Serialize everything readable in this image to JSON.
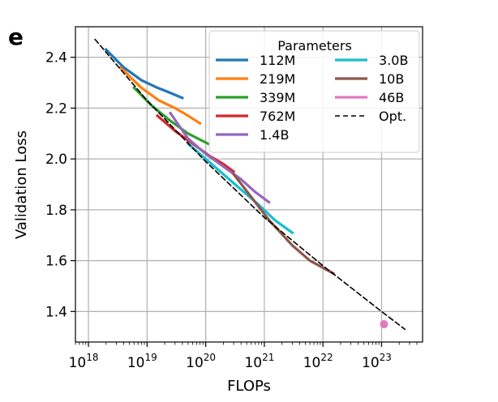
{
  "panel_label": "e",
  "chart_data": {
    "type": "line",
    "xlabel": "FLOPs",
    "ylabel": "Validation Loss",
    "xscale": "log",
    "xlim": [
      6e+17,
      5e+23
    ],
    "ylim": [
      1.28,
      2.52
    ],
    "grid": true,
    "x_ticks": [
      {
        "value": 1e+18,
        "base": "10",
        "exp": "18"
      },
      {
        "value": 1e+19,
        "base": "10",
        "exp": "19"
      },
      {
        "value": 1e+20,
        "base": "10",
        "exp": "20"
      },
      {
        "value": 1e+21,
        "base": "10",
        "exp": "21"
      },
      {
        "value": 1e+22,
        "base": "10",
        "exp": "22"
      },
      {
        "value": 1e+23,
        "base": "10",
        "exp": "23"
      }
    ],
    "y_ticks": [
      1.4,
      1.6,
      1.8,
      2.0,
      2.2,
      2.4
    ],
    "y_tick_labels": [
      "1.4",
      "1.6",
      "1.8",
      "2.0",
      "2.2",
      "2.4"
    ],
    "legend": {
      "title": "Parameters",
      "placement": "top-right",
      "columns": 2
    },
    "series": [
      {
        "name": "112M",
        "color": "#1f77b4",
        "x": [
          2e+18,
          4e+18,
          8e+18,
          1.5e+19,
          2.5e+19,
          4e+19
        ],
        "y": [
          2.43,
          2.36,
          2.31,
          2.28,
          2.26,
          2.24
        ]
      },
      {
        "name": "219M",
        "color": "#ff7f0e",
        "x": [
          3.5e+18,
          8e+18,
          1.6e+19,
          3e+19,
          5e+19,
          8e+19
        ],
        "y": [
          2.36,
          2.28,
          2.23,
          2.2,
          2.17,
          2.14
        ]
      },
      {
        "name": "339M",
        "color": "#2ca02c",
        "x": [
          6e+18,
          1.2e+19,
          2.5e+19,
          5e+19,
          1.1e+20
        ],
        "y": [
          2.28,
          2.21,
          2.15,
          2.1,
          2.06
        ]
      },
      {
        "name": "762M",
        "color": "#d62728",
        "x": [
          1.5e+19,
          3e+19,
          6e+19,
          1.2e+20,
          2e+20,
          3e+20
        ],
        "y": [
          2.17,
          2.11,
          2.06,
          2.01,
          1.98,
          1.95
        ]
      },
      {
        "name": "1.4B",
        "color": "#9467bd",
        "x": [
          2.5e+19,
          5e+19,
          1e+20,
          2e+20,
          4e+20,
          7e+20,
          1.2e+21
        ],
        "y": [
          2.18,
          2.08,
          2.02,
          1.97,
          1.92,
          1.87,
          1.83
        ]
      },
      {
        "name": "3.0B",
        "color": "#17becf",
        "x": [
          5e+19,
          1e+20,
          2e+20,
          4e+20,
          8e+20,
          1.5e+21,
          3e+21
        ],
        "y": [
          2.06,
          2.0,
          1.94,
          1.88,
          1.82,
          1.76,
          1.71
        ]
      },
      {
        "name": "10B",
        "color": "#8c564b",
        "x": [
          3e+20,
          6e+20,
          1.2e+21,
          3e+21,
          6e+21,
          1.5e+22
        ],
        "y": [
          1.94,
          1.85,
          1.76,
          1.66,
          1.6,
          1.55
        ]
      },
      {
        "name": "46B",
        "color": "#e377c2",
        "kind": "point",
        "x": [
          1.1e+23
        ],
        "y": [
          1.35
        ]
      },
      {
        "name": "Opt.",
        "color": "#000000",
        "dashed": true,
        "x": [
          1.3e+18,
          1e+19,
          1e+20,
          1e+21,
          1e+22,
          1e+23,
          2.5e+23
        ],
        "y": [
          2.47,
          2.23,
          1.99,
          1.77,
          1.58,
          1.4,
          1.33
        ]
      }
    ]
  }
}
